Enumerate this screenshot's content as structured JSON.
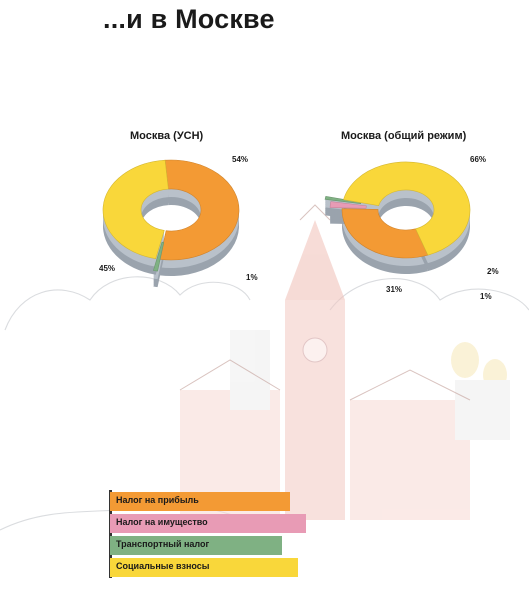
{
  "page": {
    "title": "...и в Москве"
  },
  "colors": {
    "profit_tax": "#f39a34",
    "property_tax": "#e89bb5",
    "transport_tax": "#7fb183",
    "social_contrib": "#f9d73a"
  },
  "chart_data": [
    {
      "type": "pie",
      "title": "Москва (УСН)",
      "series": [
        {
          "name": "Налог на прибыль",
          "value": 54,
          "label": "54%"
        },
        {
          "name": "Налог на имущество",
          "value": 0,
          "label": ""
        },
        {
          "name": "Транспортный налог",
          "value": 1,
          "label": "1%"
        },
        {
          "name": "Социальные взносы",
          "value": 45,
          "label": "45%"
        }
      ]
    },
    {
      "type": "pie",
      "title": "Москва (общий режим)",
      "series": [
        {
          "name": "Налог на прибыль",
          "value": 31,
          "label": "31%"
        },
        {
          "name": "Налог на имущество",
          "value": 2,
          "label": "2%"
        },
        {
          "name": "Транспортный налог",
          "value": 1,
          "label": "1%"
        },
        {
          "name": "Социальные взносы",
          "value": 66,
          "label": "66%"
        }
      ]
    }
  ],
  "legend": [
    {
      "label": "Налог на прибыль",
      "key": "profit_tax",
      "fill": 1.0
    },
    {
      "label": "Налог на имущество",
      "key": "property_tax",
      "fill": 1.0
    },
    {
      "label": "Транспортный налог",
      "key": "transport_tax",
      "fill": 1.0
    },
    {
      "label": "Социальные взносы",
      "key": "social_contrib",
      "fill": 1.0
    }
  ]
}
